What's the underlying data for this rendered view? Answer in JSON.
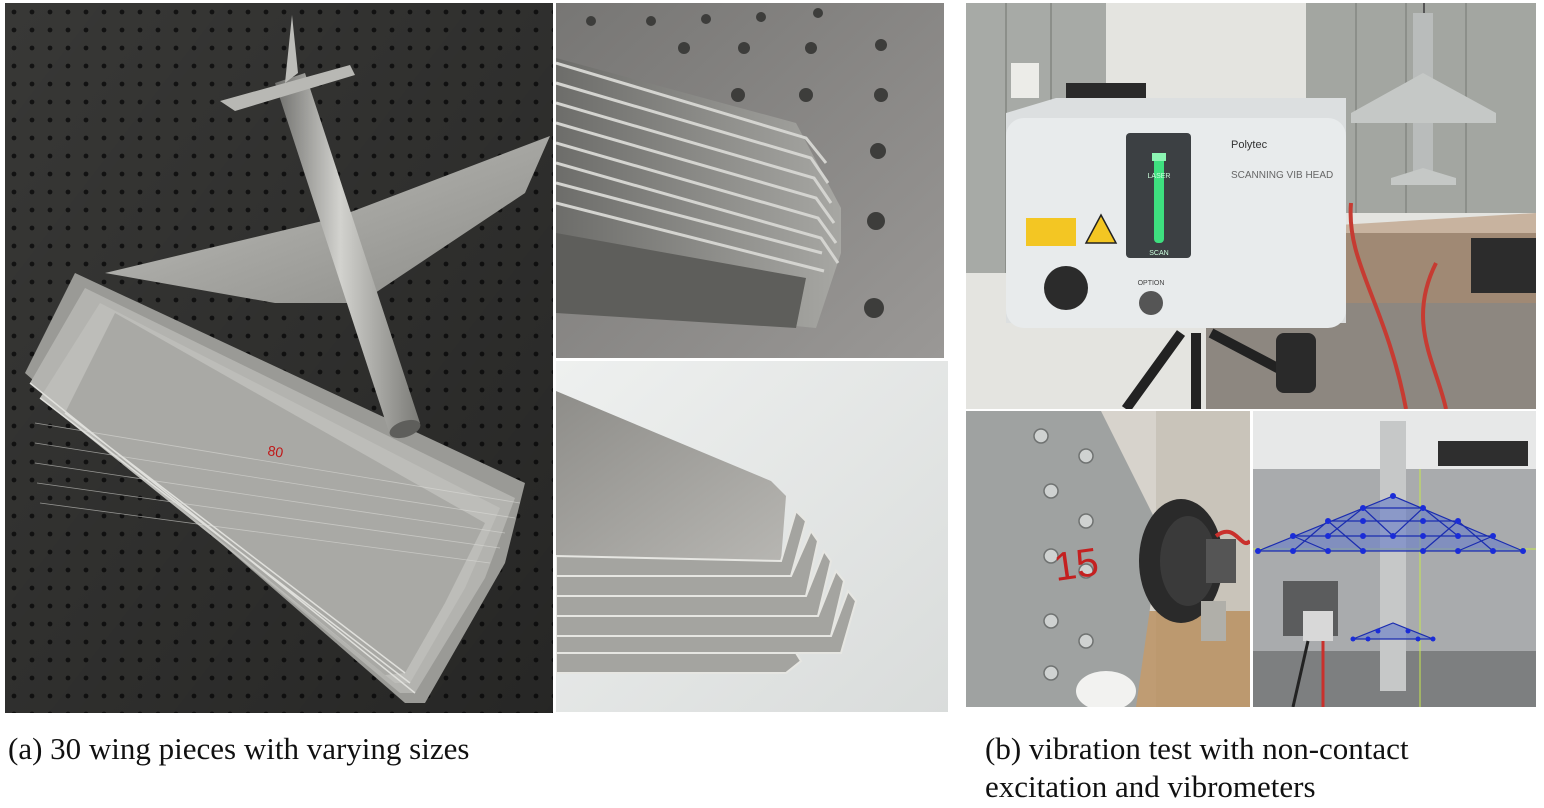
{
  "figure": {
    "caption_a": "(a) 30 wing pieces with varying sizes",
    "caption_b_line1": "(b) vibration test with non-contact",
    "caption_b_line2": "excitation and vibrometers"
  },
  "photos": {
    "a_main": "aluminum-wing-and-fuselage-on-optical-table",
    "a_top_right": "stacked-wing-plates-closeup",
    "a_bottom_right": "stacked-wing-plates-edge-view",
    "b_top": "scanning-laser-vibrometer-head",
    "b_bottom_left": "shaker-attached-to-wing-root",
    "b_bottom_right": "vibrometer-measurement-grid-overlay"
  },
  "labels": {
    "vibrometer_brand": "Polytec",
    "vibrometer_model": "SCANNING VIB HEAD",
    "laser_label": "LASER",
    "scan_label": "SCAN",
    "option_label": "OPTION",
    "number_15": "15"
  }
}
